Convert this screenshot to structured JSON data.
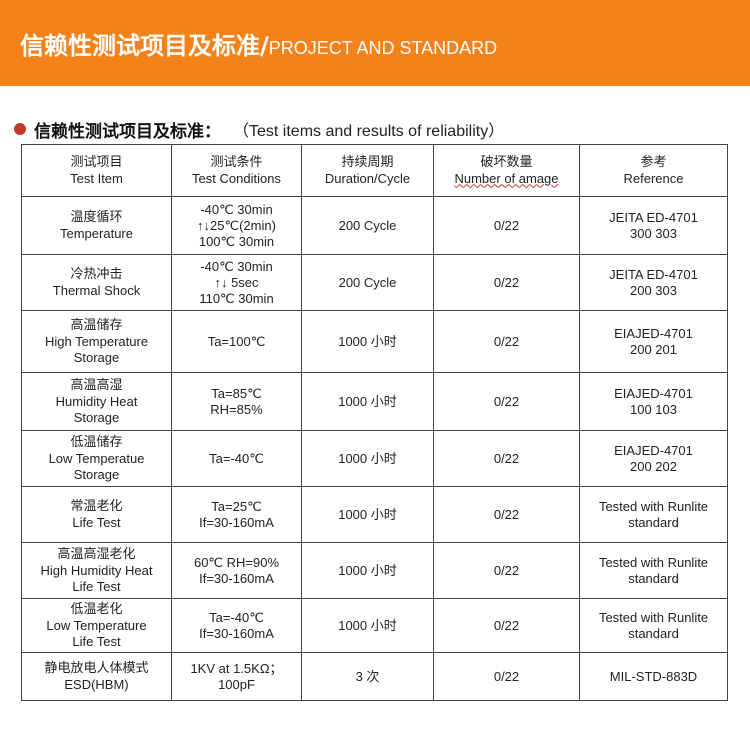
{
  "banner": {
    "title_cn": "信赖性测试项目及标准/",
    "title_en": "PROJECT AND STANDARD"
  },
  "section": {
    "title_cn": "信赖性测试项目及标准：",
    "title_en": "（Test items and results of reliability）"
  },
  "table": {
    "headers": [
      {
        "cn": "测试项目",
        "en": "Test Item"
      },
      {
        "cn": "测试条件",
        "en": "Test Conditions"
      },
      {
        "cn": "持续周期",
        "en": "Duration/Cycle"
      },
      {
        "cn": "破坏数量",
        "en": "Number of amage"
      },
      {
        "cn": "参考",
        "en": "Reference"
      }
    ],
    "rows": [
      {
        "item": [
          "温度循环",
          "Temperature"
        ],
        "conditions": [
          "-40℃ 30min",
          "↑↓25℃(2min)",
          "100℃ 30min"
        ],
        "duration": "200 Cycle",
        "damage": "0/22",
        "reference": [
          "JEITA ED-4701",
          "300 303"
        ]
      },
      {
        "item": [
          "冷热冲击",
          "Thermal Shock"
        ],
        "conditions": [
          "-40℃ 30min",
          "↑↓ 5sec",
          "110℃ 30min"
        ],
        "duration": "200 Cycle",
        "damage": "0/22",
        "reference": [
          "JEITA ED-4701",
          "200 303"
        ]
      },
      {
        "item": [
          "高温储存",
          "High Temperature",
          "Storage"
        ],
        "conditions": [
          "Ta=100℃"
        ],
        "duration": "1000 小时",
        "damage": "0/22",
        "reference": [
          "EIAJED-4701",
          "200 201"
        ]
      },
      {
        "item": [
          "高温高湿",
          "Humidity Heat",
          "Storage"
        ],
        "conditions": [
          "Ta=85℃",
          "RH=85%"
        ],
        "duration": "1000 小时",
        "damage": "0/22",
        "reference": [
          "EIAJED-4701",
          "100 103"
        ]
      },
      {
        "item": [
          "低温储存",
          "Low Temperatue",
          "Storage"
        ],
        "conditions": [
          "Ta=-40℃"
        ],
        "duration": "1000 小时",
        "damage": "0/22",
        "reference": [
          "EIAJED-4701",
          "200 202"
        ]
      },
      {
        "item": [
          "常温老化",
          "Life Test"
        ],
        "conditions": [
          "Ta=25℃",
          "If=30-160mA"
        ],
        "duration": "1000 小时",
        "damage": "0/22",
        "reference": [
          "Tested with Runlite",
          "standard"
        ]
      },
      {
        "item": [
          "高温高湿老化",
          "High Humidity Heat",
          "Life Test"
        ],
        "conditions": [
          "60℃ RH=90%",
          "If=30-160mA"
        ],
        "duration": "1000 小时",
        "damage": "0/22",
        "reference": [
          "Tested with Runlite",
          "standard"
        ]
      },
      {
        "item": [
          "低温老化",
          "Low Temperature",
          "Life Test"
        ],
        "conditions": [
          "Ta=-40℃",
          "If=30-160mA"
        ],
        "duration": "1000 小时",
        "damage": "0/22",
        "reference": [
          "Tested with Runlite",
          "standard"
        ]
      },
      {
        "item": [
          "静电放电人体模式",
          "ESD(HBM)"
        ],
        "conditions": [
          "1KV at 1.5KΩ；",
          "100pF"
        ],
        "duration": "3 次",
        "damage": "0/22",
        "reference": [
          "MIL-STD-883D"
        ]
      }
    ]
  }
}
